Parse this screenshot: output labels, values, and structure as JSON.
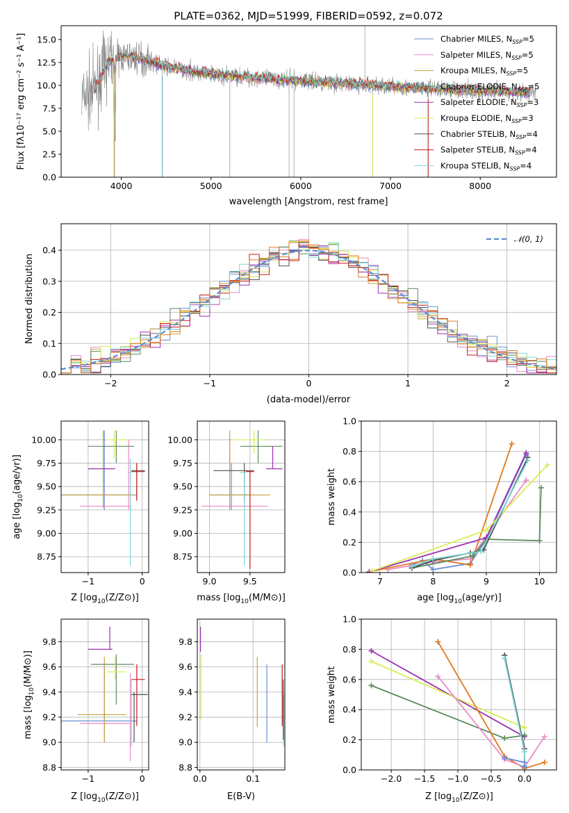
{
  "figure": {
    "title": "PLATE=0362, MJD=51999, FIBERID=0592, z=0.072"
  },
  "colors": {
    "Chabrier MILES": "#6a8fd8",
    "Salpeter MILES": "#e88bc4",
    "Kroupa MILES": "#c8a33a",
    "Chabrier ELODIE": "#5b8a5b",
    "Salpeter ELODIE": "#9b30b0",
    "Kroupa ELODIE": "#d8ec52",
    "Chabrier STELIB": "#505050",
    "Salpeter STELIB": "#c81818",
    "Kroupa STELIB": "#7fd6d6",
    "data": "#808080",
    "orange": "#e07a1f"
  },
  "chart_data": [
    {
      "type": "line",
      "panel": "spectrum",
      "xlabel": "wavelength [Angstrom, rest frame]",
      "ylabel": "Flux [fλ10⁻¹⁷ erg cm⁻² s⁻¹ A⁻¹]",
      "xlim": [
        3330,
        8850
      ],
      "ylim": [
        0,
        16.5
      ],
      "xticks": [
        4000,
        5000,
        6000,
        7000,
        8000
      ],
      "yticks": [
        0.0,
        2.5,
        5.0,
        7.5,
        10.0,
        12.5,
        15.0
      ],
      "legend": [
        "Chabrier MILES, N_SSP=5",
        "Salpeter MILES, N_SSP=5",
        "Kroupa MILES, N_SSP=5",
        "Chabrier ELODIE, N_SSP=5",
        "Salpeter ELODIE, N_SSP=3",
        "Kroupa ELODIE, N_SSP=3",
        "Chabrier STELIB, N_SSP=4",
        "Salpeter STELIB, N_SSP=4",
        "Kroupa STELIB, N_SSP=4"
      ],
      "legend_names": [
        [
          "Chabrier MILES, N",
          "SSP",
          "=5"
        ],
        [
          "Salpeter MILES, N",
          "SSP",
          "=5"
        ],
        [
          "Kroupa MILES, N",
          "SSP",
          "=5"
        ],
        [
          "Chabrier ELODIE, N",
          "SSP",
          "=5"
        ],
        [
          "Salpeter ELODIE, N",
          "SSP",
          "=3"
        ],
        [
          "Kroupa ELODIE, N",
          "SSP",
          "=3"
        ],
        [
          "Chabrier STELIB, N",
          "SSP",
          "=4"
        ],
        [
          "Salpeter STELIB, N",
          "SSP",
          "=4"
        ],
        [
          "Kroupa STELIB, N",
          "SSP",
          "=4"
        ]
      ],
      "legend_placement": "upper right",
      "continuum": {
        "x": [
          3550,
          3700,
          3850,
          4000,
          4200,
          4500,
          5000,
          5500,
          6000,
          6500,
          7000,
          7500,
          8000,
          8600
        ],
        "y": [
          8.5,
          9.5,
          12.5,
          13.2,
          13.0,
          12.0,
          11.2,
          10.8,
          10.5,
          10.2,
          9.9,
          9.6,
          9.4,
          9.2
        ]
      }
    },
    {
      "type": "histogram",
      "panel": "residuals",
      "xlabel": "(data-model)/error",
      "ylabel": "Normed distribution",
      "xlim": [
        -2.5,
        2.5
      ],
      "ylim": [
        0,
        0.485
      ],
      "xticks": [
        -2,
        -1,
        0,
        1,
        2
      ],
      "yticks": [
        0.0,
        0.1,
        0.2,
        0.3,
        0.4
      ],
      "legend": [
        "𝒩(0, 1)"
      ],
      "legend_placement": "upper right",
      "grid": true
    },
    {
      "type": "scatter",
      "panel": "age-vs-Z",
      "xlabel": "Z [log10(Z/Z⊙)]",
      "ylabel": "age  [log10(age/yr)]",
      "xlim": [
        -1.5,
        0.12
      ],
      "ylim": [
        8.58,
        10.2
      ],
      "xticks": [
        -1,
        0
      ],
      "yticks": [
        8.75,
        9.0,
        9.25,
        9.5,
        9.75,
        10.0
      ],
      "grid": true,
      "points": [
        {
          "model": "Chabrier MILES",
          "Z": -0.7,
          "age": 9.41,
          "zerr": [
            -1.5,
            -0.1
          ],
          "aerr": [
            9.25,
            10.1
          ]
        },
        {
          "model": "Salpeter MILES",
          "Z": -0.25,
          "age": 9.29,
          "zerr": [
            -1.15,
            -0.2
          ],
          "aerr": [
            9.25,
            10.0
          ]
        },
        {
          "model": "Kroupa MILES",
          "Z": -0.72,
          "age": 9.41,
          "zerr": [
            -1.5,
            -0.15
          ],
          "aerr": [
            9.27,
            10.1
          ]
        },
        {
          "model": "Chabrier ELODIE",
          "Z": -0.48,
          "age": 9.93,
          "zerr": [
            -1.0,
            -0.15
          ],
          "aerr": [
            9.75,
            10.1
          ]
        },
        {
          "model": "Salpeter ELODIE",
          "Z": -1.0,
          "age": 9.69,
          "zerr": [
            -1.0,
            -0.5
          ],
          "aerr": [
            9.69,
            9.69
          ]
        },
        {
          "model": "Kroupa ELODIE",
          "Z": -0.52,
          "age": 10.0,
          "zerr": [
            -0.65,
            -0.3
          ],
          "aerr": [
            9.8,
            10.1
          ]
        },
        {
          "model": "Chabrier STELIB",
          "Z": -0.1,
          "age": 9.67,
          "zerr": [
            -0.2,
            0.05
          ],
          "aerr": [
            9.35,
            9.75
          ]
        },
        {
          "model": "Salpeter STELIB",
          "Z": -0.1,
          "age": 9.66,
          "zerr": [
            -0.2,
            0.05
          ],
          "aerr": [
            9.35,
            9.75
          ]
        },
        {
          "model": "Kroupa STELIB",
          "Z": -0.22,
          "age": 9.65,
          "zerr": [
            -0.25,
            -0.2
          ],
          "aerr": [
            8.65,
            9.8
          ]
        }
      ]
    },
    {
      "type": "scatter",
      "panel": "age-vs-mass",
      "xlabel": "mass [log10(M/M⊙)]",
      "ylabel": "",
      "xlim": [
        8.85,
        9.93
      ],
      "ylim": [
        8.58,
        10.2
      ],
      "xticks": [
        9.0,
        9.5
      ],
      "yticks": [
        8.75,
        9.0,
        9.25,
        9.5,
        9.75,
        10.0
      ],
      "grid": true
    },
    {
      "type": "line",
      "panel": "mass-weight-vs-age",
      "xlabel": "age  [log10(age/yr)]",
      "ylabel": "mass weight",
      "xlim": [
        6.65,
        10.32
      ],
      "ylim": [
        0,
        1.0
      ],
      "xticks": [
        7,
        8,
        9,
        10
      ],
      "yticks": [
        0.0,
        0.2,
        0.4,
        0.6,
        0.8,
        1.0
      ],
      "grid": true,
      "series": [
        {
          "name": "Chabrier MILES",
          "x": [
            7.6,
            7.8,
            8.0,
            8.7,
            9.0,
            9.75
          ],
          "y": [
            0.05,
            0.08,
            0.02,
            0.06,
            0.22,
            0.78
          ]
        },
        {
          "name": "Salpeter MILES",
          "x": [
            7.15,
            8.0,
            8.7,
            9.75
          ],
          "y": [
            0.02,
            0.07,
            0.09,
            0.61
          ]
        },
        {
          "name": "Kroupa MILES",
          "x": [
            6.8,
            8.0,
            8.7,
            9.48
          ],
          "y": [
            0.005,
            0.09,
            0.05,
            0.85
          ]
        },
        {
          "name": "Chabrier ELODIE",
          "x": [
            7.6,
            8.75,
            9.0,
            10.0,
            10.03
          ],
          "y": [
            0.03,
            0.11,
            0.22,
            0.21,
            0.56
          ]
        },
        {
          "name": "Salpeter ELODIE",
          "x": [
            6.8,
            9.0,
            9.75
          ],
          "y": [
            0.005,
            0.23,
            0.79
          ]
        },
        {
          "name": "Kroupa ELODIE",
          "x": [
            6.85,
            9.0,
            10.15
          ],
          "y": [
            0.01,
            0.28,
            0.71
          ]
        },
        {
          "name": "Chabrier STELIB",
          "x": [
            7.6,
            8.0,
            8.7,
            8.95,
            9.78
          ],
          "y": [
            0.03,
            0.08,
            0.13,
            0.15,
            0.76
          ]
        },
        {
          "name": "Kroupa STELIB",
          "x": [
            7.6,
            8.0,
            8.9,
            9.78
          ],
          "y": [
            0.04,
            0.09,
            0.14,
            0.74
          ]
        }
      ]
    },
    {
      "type": "scatter",
      "panel": "mass-vs-Z",
      "xlabel": "Z [log10(Z/Z⊙)]",
      "ylabel": "mass [log10(M/M⊙)]",
      "xlim": [
        -1.5,
        0.12
      ],
      "ylim": [
        8.78,
        9.98
      ],
      "xticks": [
        -1,
        0
      ],
      "yticks": [
        8.8,
        9.0,
        9.2,
        9.4,
        9.6,
        9.8
      ],
      "grid": true
    },
    {
      "type": "scatter",
      "panel": "mass-vs-EBV",
      "xlabel": "E(B-V)",
      "ylabel": "",
      "xlim": [
        -0.005,
        0.16
      ],
      "ylim": [
        8.78,
        9.98
      ],
      "xticks": [
        0.0,
        0.1
      ],
      "yticks": [
        8.8,
        9.0,
        9.2,
        9.4,
        9.6,
        9.8
      ],
      "grid": true,
      "points": [
        {
          "model": "Salpeter ELODIE",
          "ebv": 0.001,
          "m": [
            9.72,
            9.92
          ]
        },
        {
          "model": "Kroupa ELODIE",
          "ebv": 0.002,
          "m": [
            9.18,
            9.7
          ]
        },
        {
          "model": "Kroupa MILES",
          "ebv": 0.108,
          "m": [
            9.12,
            9.68
          ]
        },
        {
          "model": "Chabrier MILES",
          "ebv": 0.126,
          "m": [
            9.0,
            9.62
          ]
        },
        {
          "model": "Salpeter STELIB",
          "ebv": 0.155,
          "m": [
            9.13,
            9.62
          ]
        },
        {
          "model": "Kroupa STELIB",
          "ebv": 0.158,
          "m": [
            8.97,
            9.38
          ]
        },
        {
          "model": "Chabrier STELIB",
          "ebv": 0.157,
          "m": [
            9.02,
            9.5
          ]
        }
      ]
    },
    {
      "type": "line",
      "panel": "mass-weight-vs-Z",
      "xlabel": "Z [log10(Z/Z⊙)]",
      "ylabel": "mass weight",
      "xlim": [
        -2.45,
        0.48
      ],
      "ylim": [
        0,
        1.0
      ],
      "xticks": [
        -2.0,
        -1.5,
        -1.0,
        -0.5,
        0.0
      ],
      "yticks": [
        0.0,
        0.2,
        0.4,
        0.6,
        0.8,
        1.0
      ],
      "grid": true,
      "series": [
        {
          "name": "Salpeter ELODIE",
          "x": [
            -2.3,
            0.0
          ],
          "y": [
            0.79,
            0.22
          ]
        },
        {
          "name": "Kroupa ELODIE",
          "x": [
            -2.3,
            0.0
          ],
          "y": [
            0.72,
            0.28
          ]
        },
        {
          "name": "Chabrier ELODIE",
          "x": [
            -2.3,
            -0.3,
            0.0
          ],
          "y": [
            0.56,
            0.21,
            0.23
          ]
        },
        {
          "name": "Kroupa MILES",
          "x": [
            -1.3,
            -0.3,
            0.0,
            0.3
          ],
          "y": [
            0.85,
            0.09,
            0.01,
            0.05
          ]
        },
        {
          "name": "Salpeter MILES",
          "x": [
            -1.3,
            -0.3,
            0.0,
            0.3
          ],
          "y": [
            0.62,
            0.07,
            0.02,
            0.22
          ]
        },
        {
          "name": "Chabrier STELIB",
          "x": [
            -0.3,
            0.0,
            0.0
          ],
          "y": [
            0.76,
            0.14,
            0.02
          ]
        },
        {
          "name": "Kroupa STELIB",
          "x": [
            -0.3,
            0.0,
            0.0
          ],
          "y": [
            0.74,
            0.12,
            0.03
          ]
        },
        {
          "name": "Chabrier MILES",
          "x": [
            -0.3,
            0.0,
            0.0
          ],
          "y": [
            0.08,
            0.05,
            0.02
          ]
        }
      ]
    }
  ]
}
